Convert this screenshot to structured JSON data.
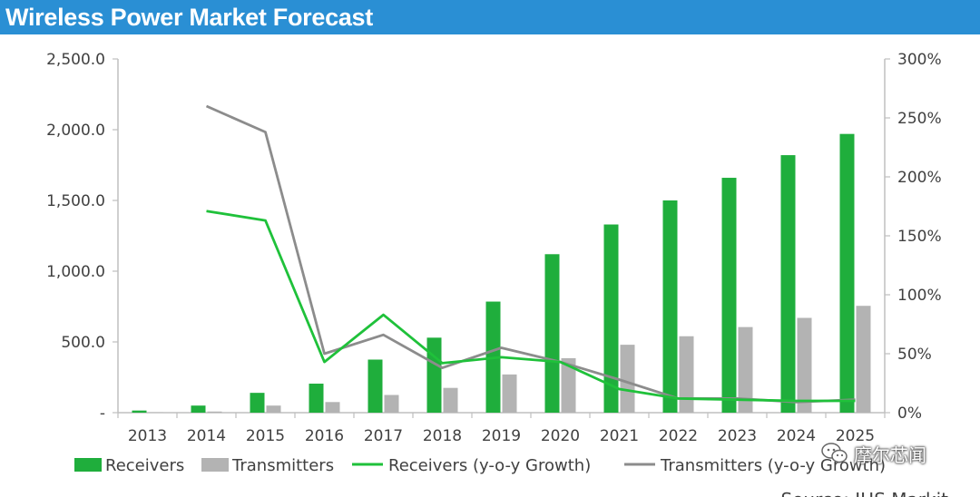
{
  "header": {
    "title": "Wireless Power Market Forecast"
  },
  "source": "Source: IHS Markit",
  "watermark": {
    "label": "摩尔芯闻",
    "icon": "wechat-icon"
  },
  "colors": {
    "header_bg": "#2a8fd4",
    "receivers": "#1fae3c",
    "transmitters": "#b3b3b3",
    "receivers_growth": "#1fc13a",
    "transmitters_growth": "#8c8c8c",
    "axis": "#bfbfbf"
  },
  "chart_data": {
    "type": "bar",
    "title": "Wireless Power Market Forecast",
    "categories": [
      "2013",
      "2014",
      "2015",
      "2016",
      "2017",
      "2018",
      "2019",
      "2020",
      "2021",
      "2022",
      "2023",
      "2024",
      "2025"
    ],
    "ylim": [
      0,
      2500
    ],
    "y_ticks": [
      "-",
      "500.0",
      "1,000.0",
      "1,500.0",
      "2,000.0",
      "2,500.0"
    ],
    "y2lim": [
      0,
      300
    ],
    "y2_ticks": [
      "0%",
      "50%",
      "100%",
      "150%",
      "200%",
      "250%",
      "300%"
    ],
    "grid": false,
    "legend_position": "bottom",
    "series": [
      {
        "name": "Receivers",
        "type": "bar",
        "axis": "left",
        "values": [
          15,
          50,
          140,
          205,
          375,
          530,
          785,
          1120,
          1330,
          1500,
          1660,
          1820,
          1970
        ]
      },
      {
        "name": "Transmitters",
        "type": "bar",
        "axis": "left",
        "values": [
          2,
          8,
          50,
          75,
          125,
          175,
          270,
          385,
          480,
          540,
          605,
          670,
          755
        ]
      },
      {
        "name": "Receivers (y-o-y Growth)",
        "type": "line",
        "axis": "right",
        "values": [
          null,
          171,
          163,
          43,
          83,
          42,
          47,
          43,
          20,
          12,
          11,
          10,
          10
        ]
      },
      {
        "name": "Transmitters (y-o-y Growth)",
        "type": "line",
        "axis": "right",
        "values": [
          null,
          260,
          238,
          50,
          66,
          38,
          55,
          43,
          28,
          12,
          12,
          9,
          11
        ]
      }
    ]
  }
}
